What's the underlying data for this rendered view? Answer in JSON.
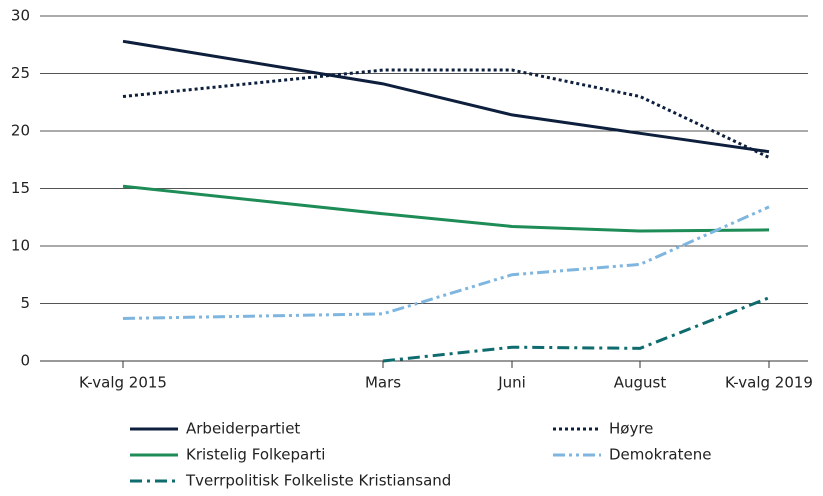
{
  "chart_data": {
    "type": "line",
    "categories": [
      "K-valg 2015",
      "Mars",
      "Juni",
      "August",
      "K-valg 2019"
    ],
    "ylim": [
      0,
      30
    ],
    "yticks": [
      0,
      5,
      10,
      15,
      20,
      25,
      30
    ],
    "grid": true,
    "series": [
      {
        "name": "Arbeiderpartiet",
        "color": "#0d1f3c",
        "style": "solid",
        "values": [
          27.8,
          24.1,
          21.4,
          19.8,
          18.2
        ]
      },
      {
        "name": "Høyre",
        "color": "#0d1f3c",
        "style": "dotted",
        "values": [
          23.0,
          25.3,
          25.3,
          23.0,
          17.7
        ]
      },
      {
        "name": "Kristelig Folkeparti",
        "color": "#1e8c57",
        "style": "solid",
        "values": [
          15.2,
          12.8,
          11.7,
          11.3,
          11.4
        ]
      },
      {
        "name": "Demokratene",
        "color": "#7fb6e0",
        "style": "dash-dot-dot",
        "values": [
          3.7,
          4.1,
          7.5,
          8.4,
          13.4
        ]
      },
      {
        "name": "Tverrpolitisk Folkeliste Kristiansand",
        "color": "#0e6b6e",
        "style": "dash-dot",
        "values": [
          null,
          0,
          1.2,
          1.1,
          5.5
        ]
      }
    ]
  }
}
